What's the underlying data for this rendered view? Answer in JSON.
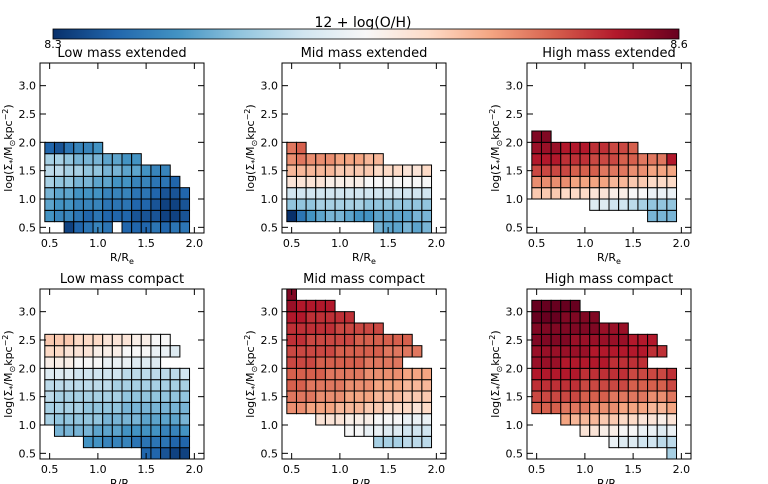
{
  "colorbar": {
    "title": "12 + log(O/H)",
    "min_label": "8.3",
    "max_label": "8.6",
    "range": [
      8.3,
      8.6
    ],
    "stops": [
      "#08306b",
      "#2166ac",
      "#4393c3",
      "#92c5de",
      "#d1e5f0",
      "#f7f7f7",
      "#fddbc7",
      "#f4a582",
      "#d6604d",
      "#b2182b",
      "#67001f"
    ]
  },
  "axes": {
    "xlabel": "R/R",
    "xlabel_sub": "e",
    "ylabel": "log(Σ",
    "ylabel_sub": "*",
    "ylabel_mid": "/M",
    "ylabel_sym": "⊙",
    "ylabel_end": "kpc",
    "ylabel_sup": "−2",
    "ylabel_close": ")",
    "x_ticks": [
      "0.5",
      "1.0",
      "1.5",
      "2.0"
    ],
    "x_tick_values": [
      0.5,
      1.0,
      1.5,
      2.0
    ],
    "y_ticks": [
      "0.5",
      "1.0",
      "1.5",
      "2.0",
      "2.5",
      "3.0"
    ],
    "y_tick_values": [
      0.5,
      1.0,
      1.5,
      2.0,
      2.5,
      3.0
    ],
    "xlim": [
      0.4,
      2.1
    ],
    "ylim": [
      0.4,
      3.4
    ],
    "bin_width": 0.1,
    "bin_height": 0.2
  },
  "chart_data": [
    {
      "type": "heatmap",
      "title": "Low mass extended",
      "x0": 0.5,
      "y0": 0.4,
      "rows": [
        [
          null,
          null,
          8.31,
          8.33,
          8.34,
          8.35,
          8.34,
          null,
          8.33,
          8.33,
          8.33,
          8.34,
          8.33,
          8.34,
          8.34
        ],
        [
          8.36,
          8.35,
          8.35,
          8.34,
          8.33,
          8.34,
          8.33,
          8.33,
          8.33,
          8.32,
          8.32,
          8.32,
          8.31,
          8.31,
          8.32
        ],
        [
          8.37,
          8.36,
          8.36,
          8.35,
          8.35,
          8.35,
          8.34,
          8.34,
          8.34,
          8.33,
          8.33,
          8.32,
          8.31,
          8.31,
          8.32
        ],
        [
          8.38,
          8.37,
          8.37,
          8.36,
          8.36,
          8.36,
          8.35,
          8.35,
          8.35,
          8.34,
          8.34,
          8.33,
          8.32,
          8.32,
          8.33
        ],
        [
          8.4,
          8.39,
          8.39,
          8.38,
          8.38,
          8.37,
          8.37,
          8.36,
          8.36,
          8.35,
          8.35,
          8.34,
          8.34,
          8.33,
          null
        ],
        [
          8.41,
          8.41,
          8.4,
          8.4,
          8.39,
          8.39,
          8.38,
          8.38,
          8.37,
          8.37,
          8.36,
          8.35,
          8.35,
          null,
          null
        ],
        [
          8.4,
          8.4,
          8.39,
          8.38,
          8.38,
          8.38,
          8.37,
          8.37,
          8.36,
          8.36,
          null,
          null,
          null,
          null,
          null
        ],
        [
          8.33,
          8.32,
          8.34,
          8.35,
          8.35,
          8.36,
          null,
          null,
          null,
          null,
          null,
          null,
          null,
          null,
          null
        ]
      ]
    },
    {
      "type": "heatmap",
      "title": "Mid mass extended",
      "x0": 0.5,
      "y0": 0.4,
      "rows": [
        [
          null,
          null,
          null,
          null,
          null,
          null,
          null,
          null,
          null,
          8.38,
          8.37,
          8.37,
          8.38,
          8.37,
          8.38
        ],
        [
          8.3,
          8.34,
          8.36,
          8.37,
          8.38,
          8.38,
          8.37,
          8.36,
          8.36,
          8.37,
          8.37,
          8.37,
          8.37,
          8.38,
          8.38
        ],
        [
          8.39,
          8.39,
          8.39,
          8.4,
          8.4,
          8.4,
          8.4,
          8.4,
          8.39,
          8.39,
          8.39,
          8.39,
          8.39,
          8.39,
          8.39
        ],
        [
          8.42,
          8.42,
          8.42,
          8.42,
          8.42,
          8.42,
          8.42,
          8.42,
          8.42,
          8.42,
          8.42,
          8.42,
          8.42,
          8.42,
          8.42
        ],
        [
          8.47,
          8.47,
          8.47,
          8.47,
          8.46,
          8.46,
          8.46,
          8.46,
          8.45,
          8.45,
          8.45,
          8.45,
          8.45,
          8.45,
          8.45
        ],
        [
          8.5,
          8.5,
          8.5,
          8.5,
          8.5,
          8.49,
          8.49,
          8.49,
          8.49,
          8.48,
          8.48,
          8.48,
          8.47,
          8.47,
          8.48
        ],
        [
          8.52,
          8.53,
          8.52,
          8.52,
          8.52,
          8.51,
          8.51,
          8.51,
          8.5,
          8.5,
          null,
          null,
          null,
          null,
          null
        ],
        [
          8.53,
          8.54,
          null,
          null,
          null,
          null,
          null,
          null,
          null,
          null,
          null,
          null,
          null,
          null,
          null
        ]
      ]
    },
    {
      "type": "heatmap",
      "title": "High mass extended",
      "x0": 0.5,
      "y0": 0.4,
      "rows": [
        [
          null,
          null,
          null,
          null,
          null,
          null,
          null,
          null,
          null,
          null,
          null,
          null,
          null,
          null,
          null
        ],
        [
          null,
          null,
          null,
          null,
          null,
          null,
          null,
          null,
          null,
          null,
          null,
          null,
          8.38,
          8.38,
          8.38
        ],
        [
          null,
          null,
          null,
          null,
          null,
          null,
          8.43,
          8.43,
          8.42,
          8.42,
          8.41,
          8.4,
          8.39,
          8.39,
          8.39
        ],
        [
          8.49,
          8.49,
          8.49,
          8.48,
          8.48,
          8.48,
          8.47,
          8.47,
          8.46,
          8.46,
          8.45,
          8.45,
          8.44,
          8.44,
          8.44
        ],
        [
          8.52,
          8.52,
          8.52,
          8.52,
          8.51,
          8.51,
          8.51,
          8.51,
          8.5,
          8.5,
          8.49,
          8.49,
          8.48,
          8.48,
          8.48
        ],
        [
          8.55,
          8.55,
          8.55,
          8.55,
          8.54,
          8.54,
          8.54,
          8.53,
          8.53,
          8.53,
          8.52,
          8.52,
          8.51,
          8.51,
          8.51
        ],
        [
          8.57,
          8.57,
          8.57,
          8.56,
          8.56,
          8.56,
          8.55,
          8.55,
          8.55,
          8.54,
          8.54,
          8.53,
          8.53,
          8.53,
          8.57
        ],
        [
          8.58,
          8.58,
          8.58,
          8.57,
          8.57,
          8.57,
          8.56,
          8.56,
          8.55,
          8.55,
          8.54,
          null,
          null,
          null,
          null
        ],
        [
          8.59,
          8.59,
          null,
          null,
          null,
          null,
          null,
          null,
          null,
          null,
          null,
          null,
          null,
          null,
          null
        ]
      ]
    },
    {
      "type": "heatmap",
      "title": "Low mass compact",
      "x0": 0.5,
      "y0": 0.4,
      "rows": [
        [
          null,
          null,
          null,
          null,
          null,
          null,
          null,
          null,
          null,
          null,
          8.33,
          8.33,
          8.32,
          8.31,
          8.31
        ],
        [
          null,
          null,
          null,
          null,
          8.36,
          8.36,
          8.35,
          8.35,
          8.35,
          8.34,
          8.34,
          8.34,
          8.34,
          8.33,
          8.33
        ],
        [
          null,
          8.38,
          8.38,
          8.38,
          8.38,
          8.37,
          8.37,
          8.37,
          8.36,
          8.36,
          8.36,
          8.36,
          8.35,
          8.35,
          8.36
        ],
        [
          8.4,
          8.39,
          8.39,
          8.39,
          8.39,
          8.39,
          8.38,
          8.38,
          8.38,
          8.38,
          8.37,
          8.37,
          8.37,
          8.37,
          8.38
        ],
        [
          8.4,
          8.4,
          8.4,
          8.4,
          8.39,
          8.39,
          8.39,
          8.39,
          8.38,
          8.38,
          8.38,
          8.38,
          8.38,
          8.38,
          8.38
        ],
        [
          8.41,
          8.4,
          8.4,
          8.4,
          8.4,
          8.4,
          8.4,
          8.4,
          8.39,
          8.39,
          8.39,
          8.39,
          8.39,
          8.39,
          8.39
        ],
        [
          8.41,
          8.41,
          8.41,
          8.41,
          8.41,
          8.41,
          8.41,
          8.4,
          8.4,
          8.4,
          8.4,
          8.4,
          8.4,
          8.4,
          8.4
        ],
        [
          8.43,
          8.43,
          8.43,
          8.42,
          8.42,
          8.42,
          8.42,
          8.42,
          8.41,
          8.41,
          8.41,
          8.41,
          8.41,
          8.41,
          8.42
        ],
        [
          8.46,
          8.46,
          8.46,
          8.45,
          8.45,
          8.45,
          8.44,
          8.44,
          8.44,
          8.43,
          8.43,
          8.43,
          null,
          null,
          null
        ],
        [
          8.48,
          8.48,
          8.47,
          8.47,
          8.47,
          8.46,
          8.46,
          8.46,
          8.45,
          8.45,
          8.45,
          8.44,
          8.44,
          8.43,
          null
        ],
        [
          8.49,
          8.49,
          8.49,
          8.48,
          8.48,
          8.48,
          8.47,
          8.47,
          8.47,
          8.46,
          8.46,
          8.45,
          8.45,
          null,
          null
        ],
        [
          null,
          null,
          null,
          null,
          null,
          null,
          null,
          null,
          null,
          null,
          null,
          null,
          null,
          null,
          null
        ],
        [
          null,
          null,
          null,
          null,
          null,
          null,
          null,
          null,
          null,
          null,
          null,
          null,
          null,
          null,
          null
        ],
        [
          null,
          null,
          null,
          null,
          null,
          null,
          null,
          null,
          null,
          null,
          null,
          null,
          null,
          null,
          null
        ]
      ]
    },
    {
      "type": "heatmap",
      "title": "Mid mass compact",
      "x0": 0.5,
      "y0": 0.4,
      "rows": [
        [
          null,
          null,
          null,
          null,
          null,
          null,
          null,
          null,
          null,
          null,
          null,
          null,
          null,
          null,
          null
        ],
        [
          null,
          null,
          null,
          null,
          null,
          null,
          null,
          null,
          null,
          8.4,
          8.4,
          8.4,
          8.41,
          8.41,
          8.41
        ],
        [
          null,
          null,
          null,
          null,
          null,
          null,
          8.45,
          8.45,
          8.44,
          8.44,
          8.43,
          8.43,
          8.42,
          8.42,
          8.42
        ],
        [
          null,
          null,
          null,
          8.47,
          8.47,
          8.47,
          8.46,
          8.46,
          8.46,
          8.45,
          8.45,
          8.45,
          8.44,
          8.44,
          8.44
        ],
        [
          8.52,
          8.52,
          8.51,
          8.51,
          8.51,
          8.5,
          8.5,
          8.5,
          8.49,
          8.49,
          8.48,
          8.48,
          8.48,
          8.47,
          8.48
        ],
        [
          8.53,
          8.53,
          8.53,
          8.52,
          8.52,
          8.52,
          8.51,
          8.51,
          8.51,
          8.5,
          8.5,
          8.5,
          8.49,
          8.49,
          8.49
        ],
        [
          8.54,
          8.54,
          8.53,
          8.53,
          8.53,
          8.53,
          8.52,
          8.52,
          8.52,
          8.51,
          8.51,
          8.51,
          8.5,
          8.5,
          8.5
        ],
        [
          8.54,
          8.54,
          8.54,
          8.54,
          8.53,
          8.53,
          8.53,
          8.53,
          8.52,
          8.52,
          8.52,
          8.52,
          8.51,
          8.51,
          8.51
        ],
        [
          8.55,
          8.55,
          8.55,
          8.54,
          8.54,
          8.54,
          8.54,
          8.54,
          8.53,
          8.53,
          8.53,
          8.53,
          null,
          null,
          null
        ],
        [
          8.55,
          8.55,
          8.55,
          8.55,
          8.55,
          8.54,
          8.54,
          8.54,
          8.54,
          8.54,
          8.53,
          8.53,
          8.53,
          8.53,
          null
        ],
        [
          8.56,
          8.56,
          8.55,
          8.55,
          8.55,
          8.55,
          8.55,
          8.54,
          8.54,
          8.54,
          8.54,
          8.54,
          8.54,
          null,
          null
        ],
        [
          8.56,
          8.56,
          8.56,
          8.56,
          8.56,
          8.55,
          8.55,
          8.55,
          8.55,
          8.55,
          null,
          null,
          null,
          null,
          null
        ],
        [
          8.57,
          8.57,
          8.56,
          8.56,
          8.56,
          8.56,
          8.56,
          null,
          null,
          null,
          null,
          null,
          null,
          null,
          null
        ],
        [
          8.58,
          8.57,
          8.57,
          8.57,
          8.57,
          null,
          null,
          null,
          null,
          null,
          null,
          null,
          null,
          null,
          null
        ],
        [
          8.59,
          null,
          null,
          null,
          null,
          null,
          null,
          null,
          null,
          null,
          null,
          null,
          null,
          null,
          null
        ]
      ]
    },
    {
      "type": "heatmap",
      "title": "High mass compact",
      "x0": 0.5,
      "y0": 0.4,
      "rows": [
        [
          null,
          null,
          null,
          null,
          null,
          null,
          null,
          null,
          null,
          null,
          null,
          null,
          null,
          null,
          8.4
        ],
        [
          null,
          null,
          null,
          null,
          null,
          null,
          null,
          null,
          8.44,
          8.43,
          8.43,
          8.42,
          8.42,
          8.41,
          8.41
        ],
        [
          null,
          null,
          null,
          null,
          null,
          8.47,
          8.47,
          8.46,
          8.46,
          8.45,
          8.45,
          8.44,
          8.44,
          8.43,
          8.44
        ],
        [
          null,
          null,
          null,
          8.51,
          8.5,
          8.5,
          8.5,
          8.49,
          8.49,
          8.48,
          8.48,
          8.47,
          8.47,
          8.46,
          8.47
        ],
        [
          8.54,
          8.54,
          8.54,
          8.53,
          8.53,
          8.53,
          8.52,
          8.52,
          8.52,
          8.51,
          8.51,
          8.51,
          8.5,
          8.5,
          8.51
        ],
        [
          8.55,
          8.55,
          8.55,
          8.55,
          8.55,
          8.54,
          8.54,
          8.54,
          8.53,
          8.53,
          8.53,
          8.53,
          8.52,
          8.52,
          8.53
        ],
        [
          8.56,
          8.56,
          8.56,
          8.56,
          8.56,
          8.55,
          8.55,
          8.55,
          8.55,
          8.55,
          8.54,
          8.54,
          8.54,
          8.54,
          8.55
        ],
        [
          8.57,
          8.57,
          8.57,
          8.57,
          8.57,
          8.56,
          8.56,
          8.56,
          8.56,
          8.56,
          8.55,
          8.55,
          8.55,
          8.55,
          8.56
        ],
        [
          8.58,
          8.58,
          8.58,
          8.57,
          8.57,
          8.57,
          8.57,
          8.57,
          8.56,
          8.56,
          8.56,
          8.56,
          null,
          null,
          null
        ],
        [
          8.58,
          8.58,
          8.58,
          8.58,
          8.58,
          8.58,
          8.57,
          8.57,
          8.57,
          8.57,
          8.57,
          8.57,
          8.56,
          8.56,
          null
        ],
        [
          8.59,
          8.59,
          8.59,
          8.59,
          8.58,
          8.58,
          8.58,
          8.58,
          8.58,
          8.58,
          8.57,
          8.57,
          8.57,
          null,
          null
        ],
        [
          8.59,
          8.59,
          8.59,
          8.59,
          8.59,
          8.59,
          8.59,
          8.58,
          8.58,
          8.58,
          null,
          null,
          null,
          null,
          null
        ],
        [
          8.6,
          8.6,
          8.6,
          8.59,
          8.59,
          8.59,
          8.59,
          null,
          null,
          null,
          null,
          null,
          null,
          null,
          null
        ],
        [
          8.6,
          8.6,
          8.6,
          8.6,
          8.6,
          null,
          null,
          null,
          null,
          null,
          null,
          null,
          null,
          null,
          null
        ],
        [
          null,
          null,
          null,
          null,
          null,
          null,
          null,
          null,
          null,
          null,
          null,
          null,
          null,
          null,
          null
        ]
      ]
    }
  ]
}
